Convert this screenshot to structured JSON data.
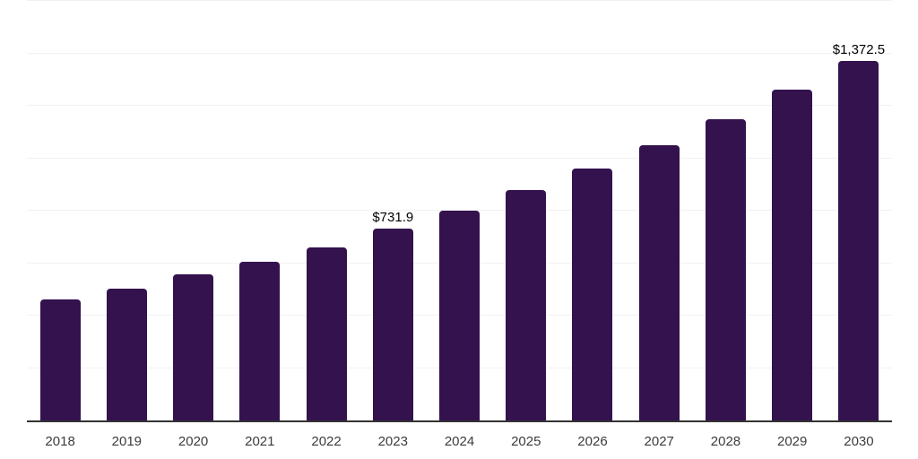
{
  "chart_data": {
    "type": "bar",
    "title": "",
    "xlabel": "",
    "ylabel": "",
    "categories": [
      "2018",
      "2019",
      "2020",
      "2021",
      "2022",
      "2023",
      "2024",
      "2025",
      "2026",
      "2027",
      "2028",
      "2029",
      "2030"
    ],
    "values": [
      462,
      503,
      558,
      606,
      661,
      731.9,
      801,
      878,
      961,
      1050,
      1148,
      1260,
      1372.5
    ],
    "data_labels": {
      "2023": "$731.9",
      "2030": "$1,372.5"
    },
    "ylim": [
      0,
      1600
    ],
    "grid_step": 200,
    "grid": true,
    "y_tick_labels_visible": false,
    "legend": false,
    "bar_corner_radius_px": 4,
    "colors": {
      "bar": "#33124E",
      "axis_line": "#333333",
      "gridline": "#F2F2F2",
      "tick_label": "#3C3C3C",
      "data_label": "#000000",
      "background": "#FFFFFF"
    }
  }
}
